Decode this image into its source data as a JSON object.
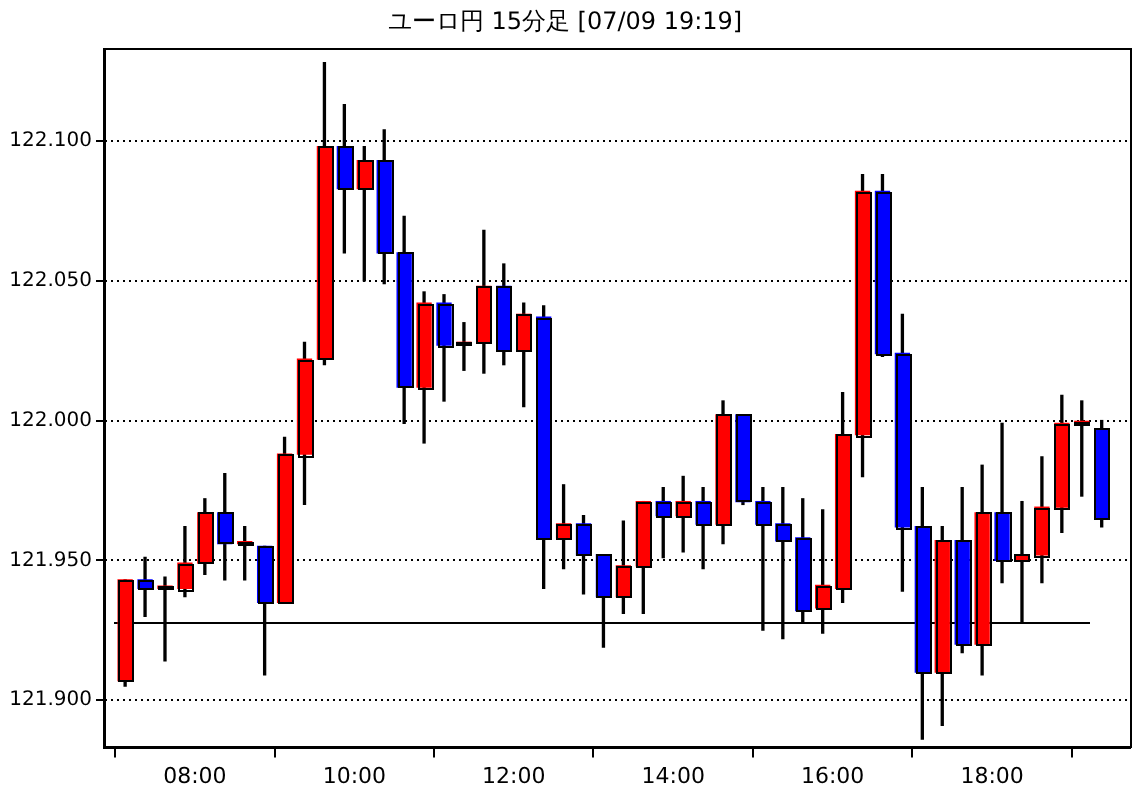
{
  "chart_data": {
    "type": "candlestick",
    "title": "ユーロ円 15分足 [07/09 19:19]",
    "x": [
      7.125,
      7.375,
      7.625,
      7.875,
      8.125,
      8.375,
      8.625,
      8.875,
      9.125,
      9.375,
      9.625,
      9.875,
      10.125,
      10.375,
      10.625,
      10.875,
      11.125,
      11.375,
      11.625,
      11.875,
      12.125,
      12.375,
      12.625,
      12.875,
      13.125,
      13.375,
      13.625,
      13.875,
      14.125,
      14.375,
      14.625,
      14.875,
      15.125,
      15.375,
      15.625,
      15.875,
      16.125,
      16.375,
      16.625,
      16.875,
      17.125,
      17.375,
      17.625,
      17.875,
      18.125,
      18.375,
      18.625,
      18.875,
      19.125,
      19.375
    ],
    "ohlc": [
      [
        121.907,
        121.943,
        121.905,
        121.943
      ],
      [
        121.943,
        121.951,
        121.93,
        121.94
      ],
      [
        121.94,
        121.944,
        121.914,
        121.94
      ],
      [
        121.94,
        121.962,
        121.937,
        121.949
      ],
      [
        121.949,
        121.972,
        121.945,
        121.967
      ],
      [
        121.967,
        121.981,
        121.943,
        121.956
      ],
      [
        121.956,
        121.962,
        121.943,
        121.956
      ],
      [
        121.955,
        121.955,
        121.909,
        121.935
      ],
      [
        121.935,
        121.994,
        121.935,
        121.988
      ],
      [
        121.988,
        122.028,
        121.97,
        122.022
      ],
      [
        122.022,
        122.128,
        122.02,
        122.098
      ],
      [
        122.098,
        122.113,
        122.06,
        122.083
      ],
      [
        122.083,
        122.098,
        122.05,
        122.093
      ],
      [
        122.093,
        122.104,
        122.049,
        122.06
      ],
      [
        122.06,
        122.073,
        121.999,
        122.012
      ],
      [
        122.012,
        122.046,
        121.992,
        122.042
      ],
      [
        122.042,
        122.045,
        122.007,
        122.027
      ],
      [
        122.027,
        122.035,
        122.018,
        122.028
      ],
      [
        122.028,
        122.068,
        122.017,
        122.048
      ],
      [
        122.048,
        122.056,
        122.02,
        122.025
      ],
      [
        122.025,
        122.042,
        122.005,
        122.038
      ],
      [
        122.037,
        122.041,
        121.94,
        121.958
      ],
      [
        121.958,
        121.977,
        121.947,
        121.963
      ],
      [
        121.963,
        121.966,
        121.938,
        121.952
      ],
      [
        121.952,
        121.952,
        121.919,
        121.937
      ],
      [
        121.937,
        121.964,
        121.931,
        121.948
      ],
      [
        121.948,
        121.971,
        121.931,
        121.971
      ],
      [
        121.971,
        121.976,
        121.951,
        121.966
      ],
      [
        121.966,
        121.98,
        121.953,
        121.971
      ],
      [
        121.971,
        121.976,
        121.947,
        121.963
      ],
      [
        121.963,
        122.007,
        121.956,
        122.002
      ],
      [
        122.002,
        122.002,
        121.97,
        121.971
      ],
      [
        121.971,
        121.976,
        121.925,
        121.963
      ],
      [
        121.963,
        121.976,
        121.922,
        121.957
      ],
      [
        121.958,
        121.972,
        121.928,
        121.932
      ],
      [
        121.933,
        121.968,
        121.924,
        121.941
      ],
      [
        121.94,
        122.01,
        121.935,
        121.995
      ],
      [
        121.995,
        122.088,
        121.98,
        122.082
      ],
      [
        122.082,
        122.088,
        122.023,
        122.024
      ],
      [
        122.024,
        122.038,
        121.939,
        121.962
      ],
      [
        121.962,
        121.976,
        121.886,
        121.91
      ],
      [
        121.91,
        121.962,
        121.891,
        121.957
      ],
      [
        121.957,
        121.976,
        121.917,
        121.92
      ],
      [
        121.92,
        121.984,
        121.909,
        121.967
      ],
      [
        121.967,
        121.999,
        121.942,
        121.95
      ],
      [
        121.95,
        121.971,
        121.928,
        121.952
      ],
      [
        121.952,
        121.987,
        121.942,
        121.969
      ],
      [
        121.969,
        122.009,
        121.96,
        121.999
      ],
      [
        121.999,
        122.007,
        121.973,
        121.999
      ],
      [
        121.997,
        122.0,
        121.962,
        121.965
      ]
    ],
    "colors": [
      "#ff0000",
      "#0000ff",
      "#ff0000",
      "#ff0000",
      "#ff0000",
      "#0000ff",
      "#ff0000",
      "#0000ff",
      "#ff0000",
      "#ff0000",
      "#ff0000",
      "#0000ff",
      "#ff0000",
      "#0000ff",
      "#0000ff",
      "#ff0000",
      "#0000ff",
      "#ff0000",
      "#ff0000",
      "#0000ff",
      "#ff0000",
      "#0000ff",
      "#ff0000",
      "#0000ff",
      "#0000ff",
      "#ff0000",
      "#ff0000",
      "#0000ff",
      "#ff0000",
      "#0000ff",
      "#ff0000",
      "#0000ff",
      "#0000ff",
      "#0000ff",
      "#0000ff",
      "#ff0000",
      "#ff0000",
      "#ff0000",
      "#0000ff",
      "#0000ff",
      "#0000ff",
      "#ff0000",
      "#0000ff",
      "#ff0000",
      "#0000ff",
      "#ff0000",
      "#ff0000",
      "#ff0000",
      "#ff0000",
      "#0000ff"
    ],
    "xlim": [
      6.86,
      19.73
    ],
    "xticks": [
      {
        "value": 8,
        "label": "08:00"
      },
      {
        "value": 10,
        "label": "10:00"
      },
      {
        "value": 12,
        "label": "12:00"
      },
      {
        "value": 14,
        "label": "14:00"
      },
      {
        "value": 16,
        "label": "16:00"
      },
      {
        "value": 18,
        "label": "18:00"
      }
    ],
    "ylim": [
      121.883,
      122.133
    ],
    "yticks": [
      {
        "value": 121.9,
        "label": "121.900"
      },
      {
        "value": 121.95,
        "label": "121.950"
      },
      {
        "value": 122,
        "label": "122.000"
      },
      {
        "value": 122.05,
        "label": "122.050"
      },
      {
        "value": 122.1,
        "label": "122.100"
      }
    ],
    "grid": "y",
    "ref_lines": [
      {
        "axis": "y",
        "value": 121.928,
        "color": "#000000",
        "line_style": "solid"
      }
    ]
  }
}
